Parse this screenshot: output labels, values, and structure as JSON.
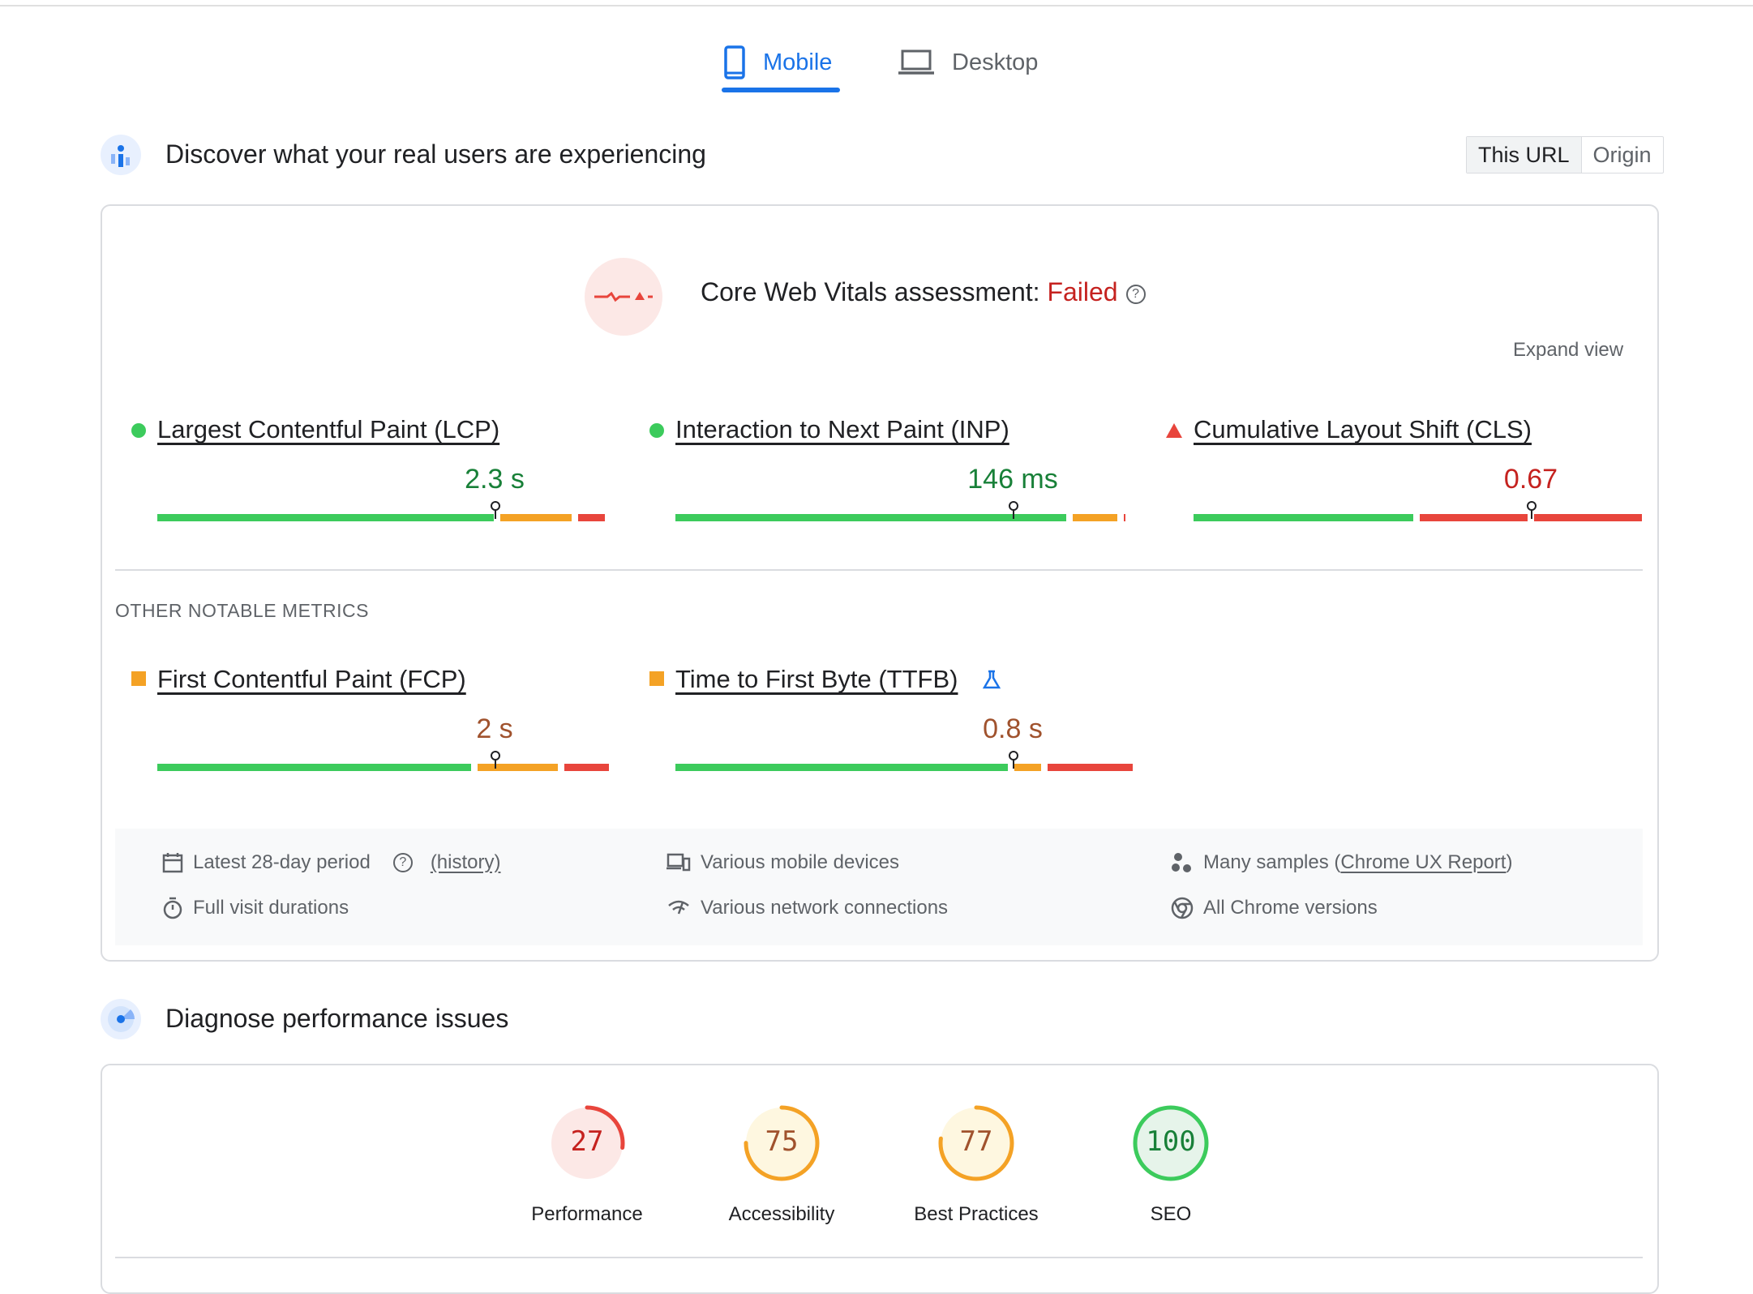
{
  "tabs": [
    {
      "label": "Mobile",
      "active": true,
      "icon": "phone-icon"
    },
    {
      "label": "Desktop",
      "active": false,
      "icon": "laptop-icon"
    }
  ],
  "field": {
    "title": "Discover what your real users are experiencing",
    "toggle": [
      "This URL",
      "Origin"
    ],
    "cwv_label": "Core Web Vitals assessment: ",
    "cwv_status": "Failed",
    "expand": "Expand view",
    "metrics": [
      {
        "name": "Largest Contentful Paint (LCP)",
        "value": "2.3 s",
        "rating": "good",
        "pos": 0.75
      },
      {
        "name": "Interaction to Next Paint (INP)",
        "value": "146 ms",
        "rating": "good",
        "pos": 0.75
      },
      {
        "name": "Cumulative Layout Shift (CLS)",
        "value": "0.67",
        "rating": "poor",
        "pos": 0.75
      }
    ],
    "other_heading": "OTHER NOTABLE METRICS",
    "other_metrics": [
      {
        "name": "First Contentful Paint (FCP)",
        "value": "2 s",
        "rating": "needs-improvement",
        "pos": 0.75
      },
      {
        "name": "Time to First Byte (TTFB)",
        "value": "0.8 s",
        "rating": "needs-improvement",
        "pos": 0.75
      }
    ],
    "info": {
      "period": "Latest 28-day period",
      "history": "(history)",
      "devices": "Various mobile devices",
      "samples_prefix": "Many samples (",
      "samples_link": "Chrome UX Report",
      "samples_suffix": ")",
      "durations": "Full visit durations",
      "network": "Various network connections",
      "chrome": "All Chrome versions"
    }
  },
  "lab": {
    "title": "Diagnose performance issues",
    "scores": [
      {
        "label": "Performance",
        "score": "27",
        "fraction": 0.27,
        "color": "#e8453c"
      },
      {
        "label": "Accessibility",
        "score": "75",
        "fraction": 0.75,
        "color": "#f4a225"
      },
      {
        "label": "Best Practices",
        "score": "77",
        "fraction": 0.77,
        "color": "#f4a225"
      },
      {
        "label": "SEO",
        "score": "100",
        "fraction": 1.0,
        "color": "#3ccb5c"
      }
    ]
  },
  "colors": {
    "good": "#3ccb5c",
    "needs": "#f4a225",
    "poor": "#e8453c",
    "accent": "#1a73e8"
  }
}
